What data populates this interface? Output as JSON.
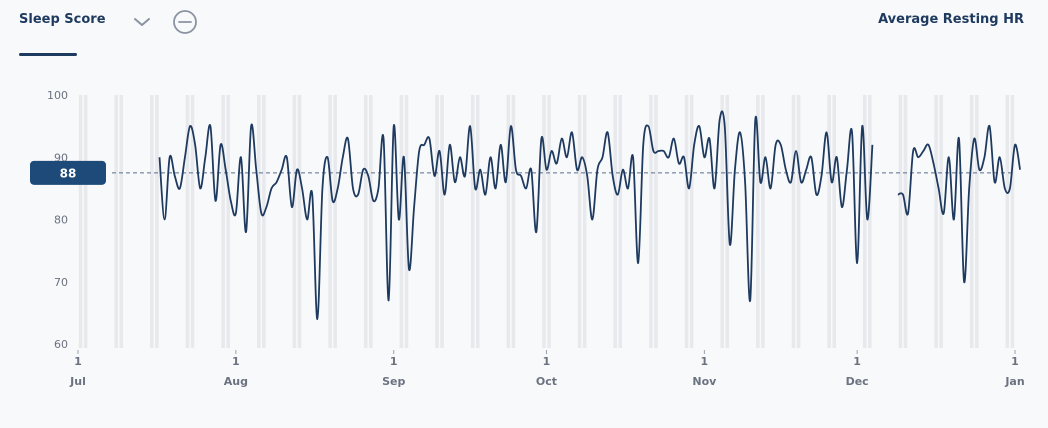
{
  "header": {
    "tab_label": "Sleep Score",
    "right_label": "Average Resting HR",
    "dropdown_icon": "chevron-down-icon",
    "remove_icon": "minus-circle-icon"
  },
  "colors": {
    "line": "#1e3a5f",
    "badge": "#1e4a7a",
    "grid": "#e7e9ed"
  },
  "avg_badge": "88",
  "chart_data": {
    "type": "line",
    "title": "Sleep Score",
    "ylim": [
      60,
      100
    ],
    "yticks": [
      "100",
      "90",
      "80",
      "70",
      "60"
    ],
    "xticks": [
      {
        "day": "1",
        "month": "Jul"
      },
      {
        "day": "1",
        "month": "Aug"
      },
      {
        "day": "1",
        "month": "Sep"
      },
      {
        "day": "1",
        "month": "Oct"
      },
      {
        "day": "1",
        "month": "Nov"
      },
      {
        "day": "1",
        "month": "Dec"
      },
      {
        "day": "1",
        "month": "Jan"
      }
    ],
    "average": 87.5,
    "series": [
      {
        "segments": [
          {
            "start_day": 16,
            "values": [
              90,
              80,
              90,
              87,
              85,
              90,
              95,
              92,
              85,
              90,
              95,
              83,
              92,
              88,
              83,
              81,
              90,
              78,
              95,
              88,
              81,
              82,
              85,
              86,
              88,
              90,
              82,
              88,
              85,
              80,
              84,
              64,
              85,
              90,
              83,
              85,
              90,
              93,
              85,
              84,
              88,
              87,
              83,
              85,
              93,
              67,
              95,
              80,
              90,
              72,
              82,
              91,
              92,
              93,
              87,
              91,
              84,
              92,
              86,
              90,
              87,
              95,
              85,
              88,
              84,
              90,
              85,
              92,
              86,
              95,
              88,
              87,
              85,
              88,
              78,
              93,
              88,
              91,
              89,
              93,
              90,
              94,
              88,
              90,
              87,
              80,
              88,
              90,
              94,
              87,
              84,
              88,
              85,
              90,
              73,
              92,
              95,
              91,
              91,
              91,
              90,
              93,
              89,
              90,
              85,
              92,
              95,
              90,
              93,
              85,
              96,
              95,
              76,
              88,
              94,
              86,
              67,
              96,
              86,
              90,
              85,
              92,
              92,
              88,
              86,
              91,
              86,
              88,
              90,
              84,
              87,
              94,
              86,
              90,
              82,
              88,
              94,
              73,
              95,
              80,
              92
            ]
          },
          {
            "start_day": 161,
            "values": [
              84,
              84,
              81,
              91,
              90,
              91,
              92,
              89,
              85,
              81,
              90,
              80,
              93,
              70,
              85,
              93,
              88,
              90,
              95,
              86,
              90,
              85,
              85,
              92,
              88
            ]
          }
        ]
      }
    ]
  }
}
